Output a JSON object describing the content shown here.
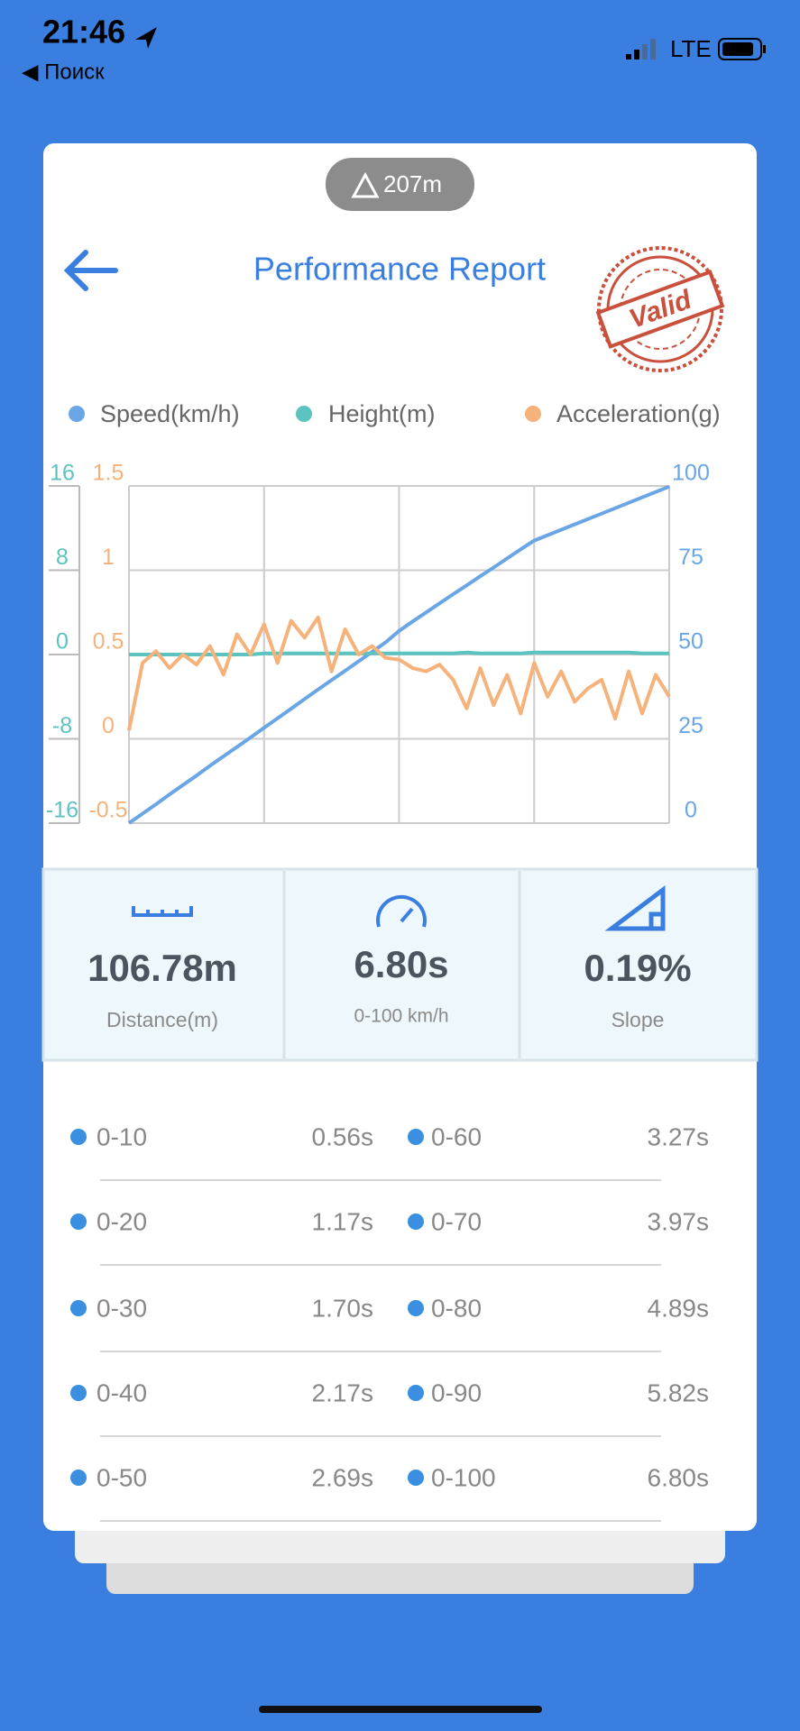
{
  "status_bar": {
    "time": "21:46",
    "back": "◀ Поиск",
    "network": "LTE"
  },
  "badge": "207m",
  "header": {
    "title": "Performance Report",
    "stamp": "Valid"
  },
  "chart_data": {
    "type": "line",
    "grid": true,
    "series": [
      {
        "name": "Speed(km/h)",
        "color": "#6aa5e6",
        "axis": "y",
        "values": [
          0,
          2.8,
          5.6,
          8.5,
          11.3,
          14.1,
          17,
          19.8,
          22.6,
          25.4,
          28.3,
          31.1,
          33.9,
          36.8,
          39.6,
          42.4,
          45.2,
          48,
          50.8,
          53.6,
          57,
          59.8,
          62.5,
          65.2,
          67.9,
          70.5,
          73.2,
          75.8,
          78.5,
          81.2,
          83.8,
          85.4,
          87,
          88.6,
          90.2,
          91.8,
          93.4,
          95,
          96.6,
          98.2,
          99.8
        ]
      },
      {
        "name": "Height(m)",
        "color": "#5cc3c0",
        "axis": "y2",
        "values": [
          0,
          0,
          0,
          0,
          0,
          0,
          0,
          0,
          0,
          0,
          0.1,
          0.1,
          0.1,
          0.1,
          0.1,
          0.1,
          0.1,
          0.1,
          0.1,
          0.1,
          0.1,
          0.1,
          0.1,
          0.1,
          0.1,
          0.2,
          0.1,
          0.1,
          0.1,
          0.1,
          0.2,
          0.2,
          0.2,
          0.2,
          0.2,
          0.2,
          0.2,
          0.2,
          0.1,
          0.1,
          0.1
        ]
      },
      {
        "name": "Acceleration(g)",
        "color": "#f5b27a",
        "axis": "y3",
        "values": [
          0.05,
          0.45,
          0.52,
          0.42,
          0.5,
          0.44,
          0.55,
          0.38,
          0.62,
          0.5,
          0.68,
          0.45,
          0.7,
          0.6,
          0.72,
          0.4,
          0.65,
          0.5,
          0.55,
          0.48,
          0.47,
          0.42,
          0.4,
          0.44,
          0.35,
          0.18,
          0.42,
          0.2,
          0.38,
          0.15,
          0.45,
          0.25,
          0.4,
          0.22,
          0.3,
          0.35,
          0.12,
          0.4,
          0.15,
          0.38,
          0.25
        ]
      }
    ],
    "ylim": [
      0,
      100
    ],
    "yticks": [
      0,
      25,
      50,
      75,
      100
    ],
    "y2lim": [
      -16,
      16
    ],
    "y2ticks": [
      -16,
      -8,
      0,
      8,
      16
    ],
    "y3lim": [
      -0.5,
      1.5
    ],
    "y3ticks": [
      -0.5,
      0,
      0.5,
      1,
      1.5
    ]
  },
  "stats": [
    {
      "value": "106.78m",
      "label": "Distance(m)"
    },
    {
      "value": "6.80s",
      "label": "0-100 km/h"
    },
    {
      "value": "0.19%",
      "label": "Slope"
    }
  ],
  "splits": [
    {
      "label": "0-10",
      "time": "0.56s"
    },
    {
      "label": "0-20",
      "time": "1.17s"
    },
    {
      "label": "0-30",
      "time": "1.70s"
    },
    {
      "label": "0-40",
      "time": "2.17s"
    },
    {
      "label": "0-50",
      "time": "2.69s"
    },
    {
      "label": "0-60",
      "time": "3.27s"
    },
    {
      "label": "0-70",
      "time": "3.97s"
    },
    {
      "label": "0-80",
      "time": "4.89s"
    },
    {
      "label": "0-90",
      "time": "5.82s"
    },
    {
      "label": "0-100",
      "time": "6.80s"
    }
  ]
}
